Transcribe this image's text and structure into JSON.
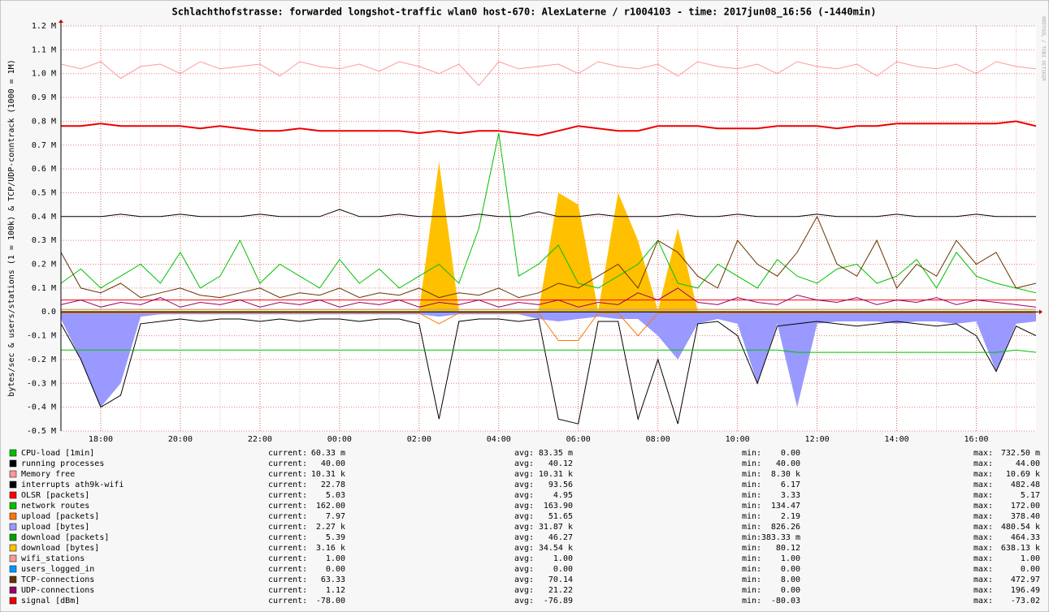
{
  "chart_data": {
    "type": "line",
    "title": "Schlachthofstrasse: forwarded longshot-traffic wlan0 host-670: AlexLaterne / r1004103 - time: 2017jun08_16:56 (-1440min)",
    "y_label": "bytes/sec & users/stations (1 = 100k) & TCP/UDP-conntrack (1000 = 1M)",
    "watermark": "RRDTOOL / TOBI OETIKER",
    "ylim": [
      -0.5,
      1.2
    ],
    "yticks": [
      {
        "value": -0.5,
        "label": "-0.5 M"
      },
      {
        "value": -0.4,
        "label": "-0.4 M"
      },
      {
        "value": -0.3,
        "label": "-0.3 M"
      },
      {
        "value": -0.2,
        "label": "-0.2 M"
      },
      {
        "value": -0.1,
        "label": "-0.1 M"
      },
      {
        "value": 0,
        "label": "0.0"
      },
      {
        "value": 0.1,
        "label": "0.1 M"
      },
      {
        "value": 0.2,
        "label": "0.2 M"
      },
      {
        "value": 0.3,
        "label": "0.3 M"
      },
      {
        "value": 0.4,
        "label": "0.4 M"
      },
      {
        "value": 0.5,
        "label": "0.5 M"
      },
      {
        "value": 0.6,
        "label": "0.6 M"
      },
      {
        "value": 0.7,
        "label": "0.7 M"
      },
      {
        "value": 0.8,
        "label": "0.8 M"
      },
      {
        "value": 0.9,
        "label": "0.9 M"
      },
      {
        "value": 1.0,
        "label": "1.0 M"
      },
      {
        "value": 1.1,
        "label": "1.1 M"
      },
      {
        "value": 1.2,
        "label": "1.2 M"
      }
    ],
    "grid": true,
    "categories": [
      null,
      null,
      "18:00",
      null,
      null,
      null,
      "20:00",
      null,
      null,
      null,
      "22:00",
      null,
      null,
      null,
      "00:00",
      null,
      null,
      null,
      "02:00",
      null,
      null,
      null,
      "04:00",
      null,
      null,
      null,
      "06:00",
      null,
      null,
      null,
      "08:00",
      null,
      null,
      null,
      "10:00",
      null,
      null,
      null,
      "12:00",
      null,
      null,
      null,
      "14:00",
      null,
      null,
      null,
      "16:00",
      null,
      null,
      null
    ],
    "stat_labels": [
      "current:",
      "avg:",
      "min:",
      "max:"
    ],
    "series": [
      {
        "name": "CPU-load  [1min]",
        "color": "#00c000",
        "stats": [
          "60.33 m",
          "83.35 m",
          "0.00",
          "732.50 m"
        ],
        "values": [
          0.12,
          0.18,
          0.1,
          0.15,
          0.2,
          0.12,
          0.25,
          0.1,
          0.15,
          0.3,
          0.12,
          0.2,
          0.15,
          0.1,
          0.22,
          0.12,
          0.18,
          0.1,
          0.15,
          0.2,
          0.12,
          0.35,
          0.75,
          0.15,
          0.2,
          0.28,
          0.12,
          0.1,
          0.15,
          0.2,
          0.3,
          0.12,
          0.1,
          0.2,
          0.15,
          0.1,
          0.22,
          0.15,
          0.12,
          0.18,
          0.2,
          0.12,
          0.15,
          0.22,
          0.1,
          0.25,
          0.15,
          0.12,
          0.1,
          0.08
        ]
      },
      {
        "name": "running processes",
        "color": "#000000",
        "stats": [
          "40.00",
          "40.12",
          "40.00",
          "44.00"
        ],
        "values": [
          0.4,
          0.4,
          0.4,
          0.41,
          0.4,
          0.4,
          0.41,
          0.4,
          0.4,
          0.4,
          0.41,
          0.4,
          0.4,
          0.4,
          0.43,
          0.4,
          0.4,
          0.41,
          0.4,
          0.4,
          0.4,
          0.41,
          0.4,
          0.4,
          0.42,
          0.4,
          0.4,
          0.41,
          0.4,
          0.4,
          0.4,
          0.41,
          0.4,
          0.4,
          0.41,
          0.4,
          0.4,
          0.4,
          0.41,
          0.4,
          0.4,
          0.4,
          0.41,
          0.4,
          0.4,
          0.4,
          0.41,
          0.4,
          0.4,
          0.4
        ]
      },
      {
        "name": "Memory free",
        "color": "#ff9999",
        "stats": [
          "10.31 k",
          "10.31 k",
          "8.30 k",
          "10.69 k"
        ],
        "values": [
          1.04,
          1.02,
          1.05,
          0.98,
          1.03,
          1.04,
          1.0,
          1.05,
          1.02,
          1.03,
          1.04,
          0.99,
          1.05,
          1.03,
          1.02,
          1.04,
          1.01,
          1.05,
          1.03,
          1.0,
          1.04,
          0.95,
          1.05,
          1.02,
          1.03,
          1.04,
          1.0,
          1.05,
          1.03,
          1.02,
          1.04,
          0.99,
          1.05,
          1.03,
          1.02,
          1.04,
          1.0,
          1.05,
          1.03,
          1.02,
          1.04,
          0.99,
          1.05,
          1.03,
          1.02,
          1.04,
          1.0,
          1.05,
          1.03,
          1.02
        ]
      },
      {
        "name": "interrupts ath9k-wifi",
        "color": "#000000",
        "stats": [
          "22.78",
          "93.56",
          "6.17",
          "482.48"
        ],
        "values": [
          -0.05,
          -0.2,
          -0.4,
          -0.35,
          -0.05,
          -0.04,
          -0.03,
          -0.04,
          -0.03,
          -0.03,
          -0.04,
          -0.03,
          -0.04,
          -0.03,
          -0.03,
          -0.04,
          -0.03,
          -0.03,
          -0.05,
          -0.45,
          -0.04,
          -0.03,
          -0.03,
          -0.04,
          -0.03,
          -0.45,
          -0.47,
          -0.04,
          -0.04,
          -0.45,
          -0.2,
          -0.47,
          -0.05,
          -0.04,
          -0.1,
          -0.3,
          -0.06,
          -0.05,
          -0.04,
          -0.05,
          -0.06,
          -0.05,
          -0.04,
          -0.05,
          -0.06,
          -0.05,
          -0.1,
          -0.25,
          -0.06,
          -0.1
        ]
      },
      {
        "name": "OLSR [packets]",
        "color": "#ff0000",
        "stats": [
          "5.03",
          "4.95",
          "3.33",
          "5.17"
        ],
        "values": [
          0.05,
          0.05,
          0.05,
          0.05,
          0.05,
          0.05,
          0.05,
          0.05,
          0.05,
          0.05,
          0.05,
          0.05,
          0.05,
          0.05,
          0.05,
          0.05,
          0.05,
          0.05,
          0.05,
          0.05,
          0.05,
          0.05,
          0.05,
          0.05,
          0.05,
          0.05,
          0.05,
          0.05,
          0.05,
          0.05,
          0.05,
          0.05,
          0.05,
          0.05,
          0.05,
          0.05,
          0.05,
          0.05,
          0.05,
          0.05,
          0.05,
          0.05,
          0.05,
          0.05,
          0.05,
          0.05,
          0.05,
          0.05,
          0.05,
          0.05
        ]
      },
      {
        "name": "network routes",
        "color": "#00c000",
        "stats": [
          "162.00",
          "163.90",
          "134.47",
          "172.00"
        ],
        "values": [
          -0.16,
          -0.16,
          -0.16,
          -0.16,
          -0.16,
          -0.16,
          -0.16,
          -0.16,
          -0.16,
          -0.16,
          -0.16,
          -0.16,
          -0.16,
          -0.16,
          -0.16,
          -0.16,
          -0.16,
          -0.16,
          -0.16,
          -0.16,
          -0.16,
          -0.16,
          -0.16,
          -0.16,
          -0.16,
          -0.16,
          -0.16,
          -0.16,
          -0.16,
          -0.16,
          -0.16,
          -0.16,
          -0.16,
          -0.16,
          -0.16,
          -0.16,
          -0.16,
          -0.17,
          -0.17,
          -0.17,
          -0.17,
          -0.17,
          -0.17,
          -0.17,
          -0.17,
          -0.17,
          -0.17,
          -0.17,
          -0.16,
          -0.17
        ]
      },
      {
        "name": "upload [packets]",
        "color": "#ff7700",
        "stats": [
          "7.97",
          "51.65",
          "2.19",
          "378.40"
        ],
        "values": [
          -0.005,
          -0.005,
          -0.005,
          -0.005,
          -0.005,
          -0.005,
          -0.005,
          -0.005,
          -0.005,
          -0.005,
          -0.005,
          -0.005,
          -0.005,
          -0.005,
          -0.005,
          -0.005,
          -0.005,
          -0.005,
          -0.005,
          -0.05,
          -0.005,
          -0.005,
          -0.005,
          -0.005,
          -0.005,
          -0.12,
          -0.12,
          -0.005,
          -0.005,
          -0.1,
          -0.005,
          -0.005,
          -0.005,
          -0.005,
          -0.005,
          -0.005,
          -0.005,
          -0.005,
          -0.005,
          -0.005,
          -0.005,
          -0.005,
          -0.005,
          -0.005,
          -0.005,
          -0.005,
          -0.005,
          -0.005,
          -0.005,
          -0.005
        ]
      },
      {
        "name": "upload [bytes]",
        "color": "#9999ff",
        "area": true,
        "stats": [
          "2.27 k",
          "31.87 k",
          "826.26",
          "480.54 k"
        ],
        "values": [
          -0.03,
          -0.2,
          -0.4,
          -0.3,
          -0.02,
          -0.01,
          -0.01,
          -0.01,
          -0.01,
          -0.01,
          -0.01,
          -0.01,
          -0.01,
          -0.01,
          -0.01,
          -0.01,
          -0.01,
          -0.01,
          -0.01,
          -0.02,
          -0.01,
          -0.01,
          -0.01,
          -0.01,
          -0.03,
          -0.04,
          -0.03,
          -0.02,
          -0.03,
          -0.03,
          -0.1,
          -0.2,
          -0.05,
          -0.03,
          -0.05,
          -0.3,
          -0.05,
          -0.4,
          -0.05,
          -0.04,
          -0.04,
          -0.04,
          -0.05,
          -0.04,
          -0.04,
          -0.05,
          -0.04,
          -0.25,
          -0.05,
          -0.04
        ]
      },
      {
        "name": "download [packets]",
        "color": "#00a000",
        "stats": [
          "5.39",
          "46.27",
          "383.33 m",
          "464.33"
        ],
        "values": [
          0.01,
          0.01,
          0.01,
          0.01,
          0.01,
          0.01,
          0.01,
          0.01,
          0.01,
          0.01,
          0.01,
          0.01,
          0.01,
          0.01,
          0.01,
          0.01,
          0.01,
          0.01,
          0.01,
          0.01,
          0.01,
          0.01,
          0.01,
          0.01,
          0.01,
          0.01,
          0.01,
          0.01,
          0.01,
          0.01,
          0.01,
          0.01,
          0.01,
          0.01,
          0.01,
          0.01,
          0.01,
          0.01,
          0.01,
          0.01,
          0.01,
          0.01,
          0.01,
          0.01,
          0.01,
          0.01,
          0.01,
          0.01,
          0.01,
          0.01
        ]
      },
      {
        "name": "download [bytes]",
        "color": "#ffc000",
        "area": true,
        "stats": [
          "3.16 k",
          "34.54 k",
          "80.12",
          "638.13 k"
        ],
        "values": [
          0.005,
          0.005,
          0.005,
          0.005,
          0.005,
          0.005,
          0.005,
          0.005,
          0.005,
          0.005,
          0.005,
          0.005,
          0.005,
          0.005,
          0.005,
          0.005,
          0.005,
          0.005,
          0.005,
          0.63,
          0.005,
          0.005,
          0.005,
          0.005,
          0.005,
          0.5,
          0.45,
          0.005,
          0.5,
          0.3,
          0.005,
          0.35,
          0.005,
          0.005,
          0.005,
          0.005,
          0.005,
          0.005,
          0.005,
          0.005,
          0.005,
          0.005,
          0.005,
          0.005,
          0.005,
          0.005,
          0.005,
          0.005,
          0.005,
          0.005
        ]
      },
      {
        "name": "wifi_stations",
        "color": "#ff9999",
        "stats": [
          "1.00",
          "1.00",
          "1.00",
          "1.00"
        ],
        "values": [
          0.01,
          0.01,
          0.01,
          0.01,
          0.01,
          0.01,
          0.01,
          0.01,
          0.01,
          0.01,
          0.01,
          0.01,
          0.01,
          0.01,
          0.01,
          0.01,
          0.01,
          0.01,
          0.01,
          0.01,
          0.01,
          0.01,
          0.01,
          0.01,
          0.01,
          0.01,
          0.01,
          0.01,
          0.01,
          0.01,
          0.01,
          0.01,
          0.01,
          0.01,
          0.01,
          0.01,
          0.01,
          0.01,
          0.01,
          0.01,
          0.01,
          0.01,
          0.01,
          0.01,
          0.01,
          0.01,
          0.01,
          0.01,
          0.01,
          0.01
        ]
      },
      {
        "name": "users_logged_in",
        "color": "#0099ff",
        "stats": [
          "0.00",
          "0.00",
          "0.00",
          "0.00"
        ],
        "values": [
          0,
          0,
          0,
          0,
          0,
          0,
          0,
          0,
          0,
          0,
          0,
          0,
          0,
          0,
          0,
          0,
          0,
          0,
          0,
          0,
          0,
          0,
          0,
          0,
          0,
          0,
          0,
          0,
          0,
          0,
          0,
          0,
          0,
          0,
          0,
          0,
          0,
          0,
          0,
          0,
          0,
          0,
          0,
          0,
          0,
          0,
          0,
          0,
          0,
          0
        ]
      },
      {
        "name": "TCP-connections",
        "color": "#663300",
        "stats": [
          "63.33",
          "70.14",
          "8.00",
          "472.97"
        ],
        "values": [
          0.25,
          0.1,
          0.08,
          0.12,
          0.06,
          0.08,
          0.1,
          0.07,
          0.06,
          0.08,
          0.1,
          0.06,
          0.08,
          0.07,
          0.1,
          0.06,
          0.08,
          0.07,
          0.1,
          0.06,
          0.08,
          0.07,
          0.1,
          0.06,
          0.08,
          0.12,
          0.1,
          0.15,
          0.2,
          0.1,
          0.3,
          0.25,
          0.15,
          0.1,
          0.3,
          0.2,
          0.15,
          0.25,
          0.4,
          0.2,
          0.15,
          0.3,
          0.1,
          0.2,
          0.15,
          0.3,
          0.2,
          0.25,
          0.1,
          0.12
        ]
      },
      {
        "name": "UDP-connections",
        "color": "#990066",
        "stats": [
          "1.12",
          "21.22",
          "0.00",
          "196.49"
        ],
        "values": [
          0.03,
          0.05,
          0.02,
          0.04,
          0.03,
          0.06,
          0.02,
          0.04,
          0.03,
          0.05,
          0.02,
          0.04,
          0.03,
          0.05,
          0.02,
          0.04,
          0.03,
          0.05,
          0.02,
          0.04,
          0.03,
          0.05,
          0.02,
          0.04,
          0.03,
          0.05,
          0.02,
          0.04,
          0.03,
          0.08,
          0.05,
          0.1,
          0.04,
          0.03,
          0.06,
          0.04,
          0.03,
          0.07,
          0.05,
          0.04,
          0.06,
          0.03,
          0.05,
          0.04,
          0.06,
          0.03,
          0.05,
          0.04,
          0.03,
          0.02
        ]
      },
      {
        "name": "signal [dBm]",
        "color": "#ee0000",
        "stats": [
          "-78.00",
          "-76.89",
          "-80.03",
          "-73.02"
        ],
        "width": 2,
        "values": [
          0.78,
          0.78,
          0.79,
          0.78,
          0.78,
          0.78,
          0.78,
          0.77,
          0.78,
          0.77,
          0.76,
          0.76,
          0.77,
          0.76,
          0.76,
          0.76,
          0.76,
          0.76,
          0.75,
          0.76,
          0.75,
          0.76,
          0.76,
          0.75,
          0.74,
          0.76,
          0.78,
          0.77,
          0.76,
          0.76,
          0.78,
          0.78,
          0.78,
          0.77,
          0.77,
          0.77,
          0.78,
          0.78,
          0.78,
          0.77,
          0.78,
          0.78,
          0.79,
          0.79,
          0.79,
          0.79,
          0.79,
          0.79,
          0.8,
          0.78
        ]
      }
    ]
  }
}
